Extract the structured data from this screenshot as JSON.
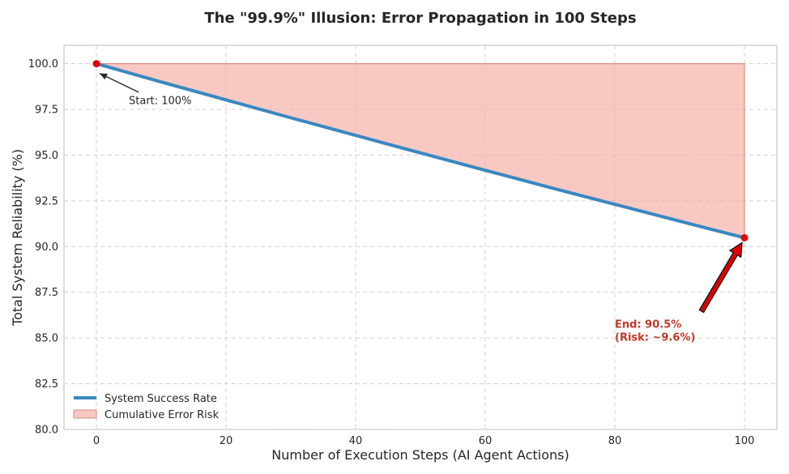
{
  "chart_data": {
    "type": "line",
    "title": "The \"99.9%\" Illusion: Error Propagation in 100 Steps",
    "xlabel": "Number of Execution Steps (AI Agent Actions)",
    "ylabel": "Total System Reliability (%)",
    "xlim": [
      -5,
      105
    ],
    "ylim": [
      80,
      101
    ],
    "x_ticks": [
      0,
      20,
      40,
      60,
      80,
      100
    ],
    "x_tick_labels": [
      "0",
      "20",
      "40",
      "60",
      "80",
      "100"
    ],
    "y_ticks": [
      80,
      82.5,
      85,
      87.5,
      90,
      92.5,
      95,
      97.5,
      100
    ],
    "y_tick_labels": [
      "80.0",
      "82.5",
      "85.0",
      "87.5",
      "90.0",
      "92.5",
      "95.0",
      "97.5",
      "100.0"
    ],
    "grid": true,
    "legend_position": "lower-left",
    "series": [
      {
        "name": "System Success Rate",
        "color": "#3a87c0",
        "x": [
          0,
          10,
          20,
          30,
          40,
          50,
          60,
          70,
          80,
          90,
          100
        ],
        "values": [
          100.0,
          99.0,
          98.02,
          97.04,
          96.08,
          95.12,
          94.17,
          93.23,
          92.31,
          91.39,
          90.48
        ]
      }
    ],
    "fill": {
      "name": "Cumulative Error Risk",
      "color": "#f4aaa1",
      "upper": 100
    },
    "markers": [
      {
        "x": 0,
        "y": 100.0,
        "color": "#e60000"
      },
      {
        "x": 100,
        "y": 90.48,
        "color": "#e60000"
      }
    ],
    "annotations": {
      "start": {
        "text": "Start: 100%",
        "point": [
          0,
          100
        ],
        "text_pos": [
          5,
          98.0
        ]
      },
      "end": {
        "line1": "End: 90.5%",
        "line2": "(Risk: ~9.6%)",
        "point": [
          100,
          90.48
        ],
        "text_pos": [
          80,
          85.7
        ],
        "color": "#c0392b"
      }
    }
  }
}
